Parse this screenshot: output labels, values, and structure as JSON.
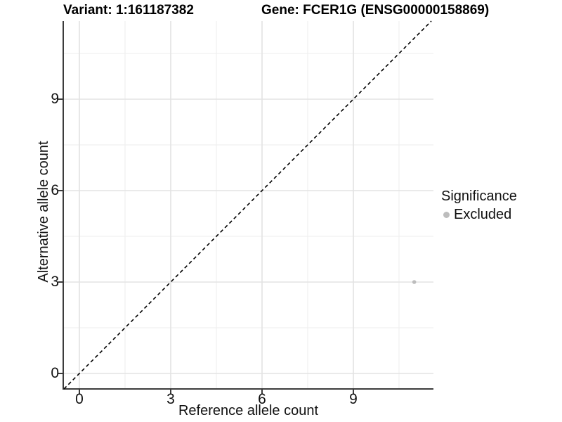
{
  "titles": {
    "variant": "Variant: 1:161187382",
    "gene": "Gene: FCER1G (ENSG00000158869)"
  },
  "axes": {
    "x_label": "Reference allele count",
    "y_label": "Alternative allele count"
  },
  "legend": {
    "title": "Significance",
    "items": [
      {
        "label": "Excluded",
        "color": "#bdbdbd"
      }
    ]
  },
  "colors": {
    "point": "#bdbdbd",
    "axis_line": "#3c3c3c",
    "major_grid": "#e3e3e3",
    "minor_grid": "#eeeeee",
    "reference_line": "#000000",
    "background": "#ffffff"
  },
  "chart_data": {
    "type": "scatter",
    "title": "Variant: 1:161187382 | Gene: FCER1G (ENSG00000158869)",
    "xlabel": "Reference allele count",
    "ylabel": "Alternative allele count",
    "x_ticks": [
      0,
      3,
      6,
      9
    ],
    "y_ticks": [
      0,
      3,
      6,
      9
    ],
    "xlim": [
      -0.55,
      11.6
    ],
    "ylim": [
      -0.55,
      11.6
    ],
    "grid": true,
    "legend_position": "right",
    "legend_title": "Significance",
    "series": [
      {
        "name": "Excluded",
        "color": "#bdbdbd",
        "points": [
          {
            "x": 11,
            "y": 3
          }
        ]
      }
    ],
    "reference_line": {
      "style": "dashed",
      "slope": 1,
      "intercept": 0
    }
  }
}
